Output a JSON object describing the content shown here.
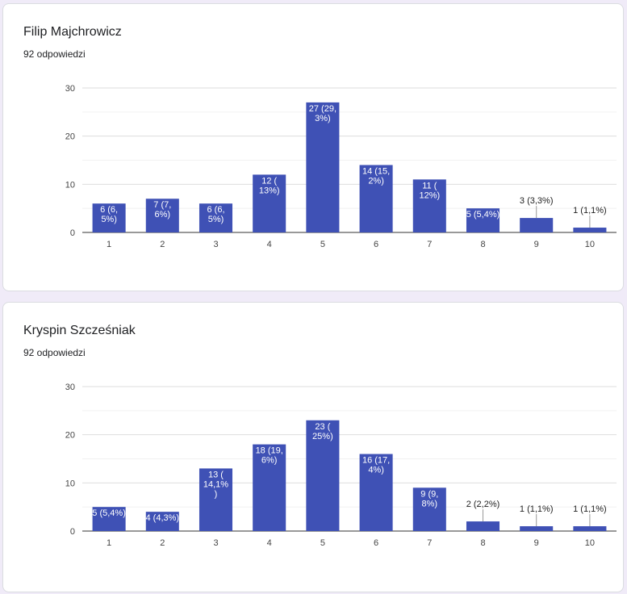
{
  "chart_data": [
    {
      "type": "bar",
      "title": "Filip Majchrowicz",
      "subtitle": "92 odpowiedzi",
      "categories": [
        "1",
        "2",
        "3",
        "4",
        "5",
        "6",
        "7",
        "8",
        "9",
        "10"
      ],
      "values": [
        6,
        7,
        6,
        12,
        27,
        14,
        11,
        5,
        3,
        1
      ],
      "data_labels": [
        [
          "6 (6,",
          "5%)"
        ],
        [
          "7 (7,",
          "6%)"
        ],
        [
          "6 (6,",
          "5%)"
        ],
        [
          "12 (",
          "13%)"
        ],
        [
          "27 (29,",
          "3%)"
        ],
        [
          "14 (15,",
          "2%)"
        ],
        [
          "11 (",
          "12%)"
        ],
        [
          "5 (5,4%)"
        ],
        [
          "3 (3,3%)"
        ],
        [
          "1 (1,1%)"
        ]
      ],
      "ylim": [
        0,
        30
      ],
      "yticks": [
        0,
        10,
        20,
        30
      ],
      "grid": true,
      "color": "#3f51b5"
    },
    {
      "type": "bar",
      "title": "Kryspin Szcześniak",
      "subtitle": "92 odpowiedzi",
      "categories": [
        "1",
        "2",
        "3",
        "4",
        "5",
        "6",
        "7",
        "8",
        "9",
        "10"
      ],
      "values": [
        5,
        4,
        13,
        18,
        23,
        16,
        9,
        2,
        1,
        1
      ],
      "data_labels": [
        [
          "5 (5,4%)"
        ],
        [
          "4 (4,3%)"
        ],
        [
          "13 (",
          "14,1%",
          ")"
        ],
        [
          "18 (19,",
          "6%)"
        ],
        [
          "23 (",
          "25%)"
        ],
        [
          "16 (17,",
          "4%)"
        ],
        [
          "9 (9,",
          "8%)"
        ],
        [
          "2 (2,2%)"
        ],
        [
          "1 (1,1%)"
        ],
        [
          "1 (1,1%)"
        ]
      ],
      "ylim": [
        0,
        30
      ],
      "yticks": [
        0,
        10,
        20,
        30
      ],
      "grid": true,
      "color": "#3f51b5"
    }
  ]
}
